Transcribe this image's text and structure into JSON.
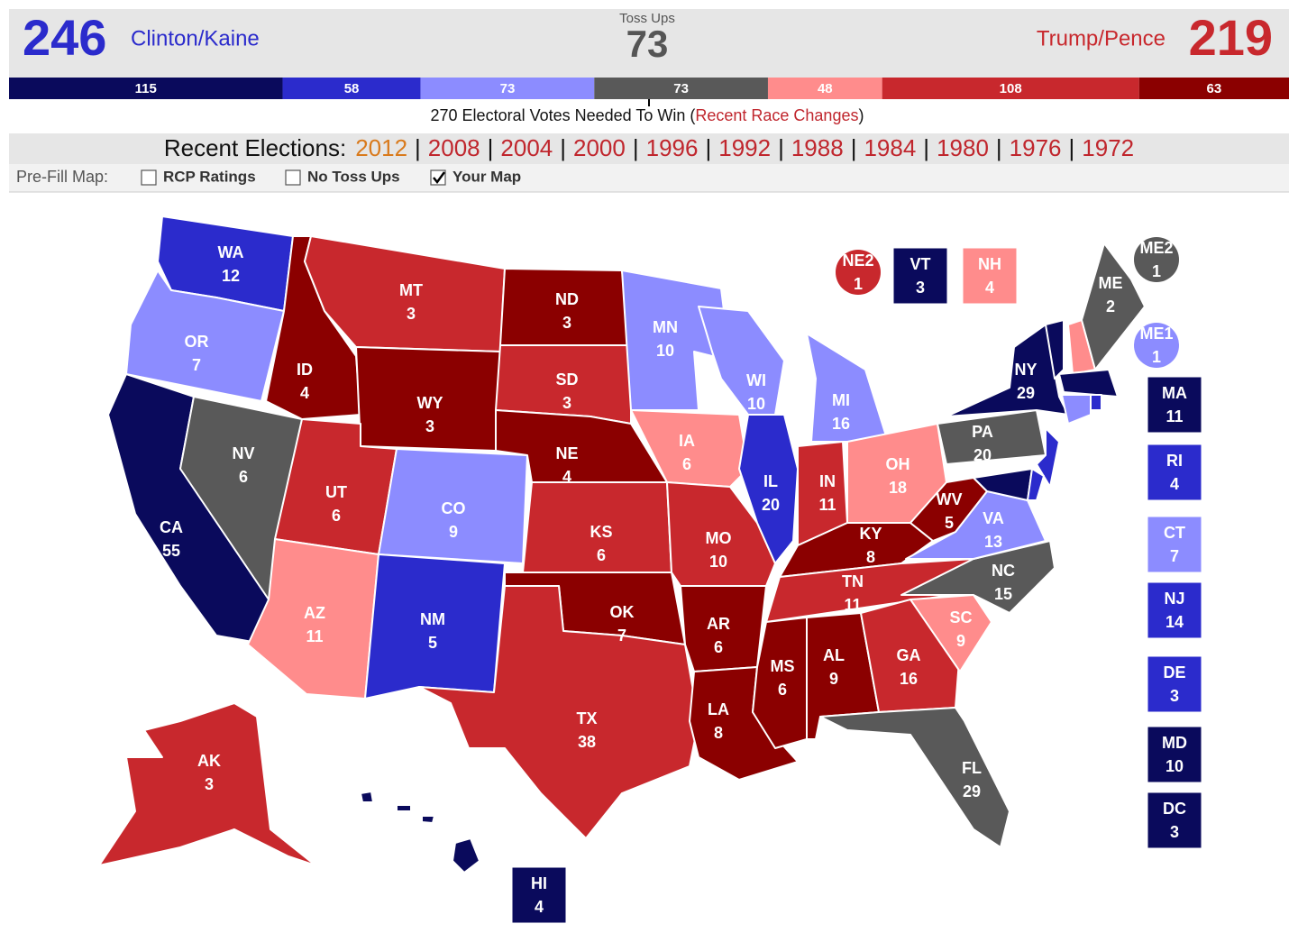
{
  "header": {
    "clinton_total": 246,
    "clinton_label": "Clinton/Kaine",
    "tossups_label": "Toss Ups",
    "tossups_total": 73,
    "trump_label": "Trump/Pence",
    "trump_total": 219
  },
  "bar": [
    {
      "value": 115,
      "color": "#0a0a5c"
    },
    {
      "value": 58,
      "color": "#2b2bcc"
    },
    {
      "value": 73,
      "color": "#8c8cff"
    },
    {
      "value": 73,
      "color": "#595959"
    },
    {
      "value": 48,
      "color": "#ff8c8c"
    },
    {
      "value": 108,
      "color": "#c8282d"
    },
    {
      "value": 63,
      "color": "#8b0000"
    }
  ],
  "needed": {
    "before": "270 Electoral Votes Needed To Win (",
    "link": "Recent Race Changes",
    "after": ")"
  },
  "elections": {
    "label": "Recent Elections:",
    "separator": "|",
    "active_index": 0,
    "years": [
      "2012",
      "2008",
      "2004",
      "2000",
      "1996",
      "1992",
      "1988",
      "1984",
      "1980",
      "1976",
      "1972"
    ]
  },
  "prefill": {
    "label": "Pre-Fill Map:",
    "options": [
      {
        "label": "RCP Ratings",
        "checked": false
      },
      {
        "label": "No Toss Ups",
        "checked": false
      },
      {
        "label": "Your Map",
        "checked": true
      }
    ]
  },
  "states": [
    {
      "abbr": "WA",
      "votes": 12,
      "color": "#2b2bcc"
    },
    {
      "abbr": "OR",
      "votes": 7,
      "color": "#8c8cff"
    },
    {
      "abbr": "CA",
      "votes": 55,
      "color": "#0a0a5c"
    },
    {
      "abbr": "NV",
      "votes": 6,
      "color": "#595959"
    },
    {
      "abbr": "ID",
      "votes": 4,
      "color": "#8b0000"
    },
    {
      "abbr": "MT",
      "votes": 3,
      "color": "#c8282d"
    },
    {
      "abbr": "WY",
      "votes": 3,
      "color": "#8b0000"
    },
    {
      "abbr": "UT",
      "votes": 6,
      "color": "#c8282d"
    },
    {
      "abbr": "CO",
      "votes": 9,
      "color": "#8c8cff"
    },
    {
      "abbr": "AZ",
      "votes": 11,
      "color": "#ff8c8c"
    },
    {
      "abbr": "NM",
      "votes": 5,
      "color": "#2b2bcc"
    },
    {
      "abbr": "ND",
      "votes": 3,
      "color": "#8b0000"
    },
    {
      "abbr": "SD",
      "votes": 3,
      "color": "#c8282d"
    },
    {
      "abbr": "NE",
      "votes": 4,
      "color": "#8b0000"
    },
    {
      "abbr": "KS",
      "votes": 6,
      "color": "#c8282d"
    },
    {
      "abbr": "OK",
      "votes": 7,
      "color": "#8b0000"
    },
    {
      "abbr": "TX",
      "votes": 38,
      "color": "#c8282d"
    },
    {
      "abbr": "MN",
      "votes": 10,
      "color": "#8c8cff"
    },
    {
      "abbr": "IA",
      "votes": 6,
      "color": "#ff8c8c"
    },
    {
      "abbr": "MO",
      "votes": 10,
      "color": "#c8282d"
    },
    {
      "abbr": "AR",
      "votes": 6,
      "color": "#8b0000"
    },
    {
      "abbr": "LA",
      "votes": 8,
      "color": "#8b0000"
    },
    {
      "abbr": "WI",
      "votes": 10,
      "color": "#8c8cff"
    },
    {
      "abbr": "IL",
      "votes": 20,
      "color": "#2b2bcc"
    },
    {
      "abbr": "MI",
      "votes": 16,
      "color": "#8c8cff"
    },
    {
      "abbr": "IN",
      "votes": 11,
      "color": "#c8282d"
    },
    {
      "abbr": "OH",
      "votes": 18,
      "color": "#ff8c8c"
    },
    {
      "abbr": "KY",
      "votes": 8,
      "color": "#8b0000"
    },
    {
      "abbr": "TN",
      "votes": 11,
      "color": "#c8282d"
    },
    {
      "abbr": "MS",
      "votes": 6,
      "color": "#8b0000"
    },
    {
      "abbr": "AL",
      "votes": 9,
      "color": "#8b0000"
    },
    {
      "abbr": "GA",
      "votes": 16,
      "color": "#c8282d"
    },
    {
      "abbr": "FL",
      "votes": 29,
      "color": "#595959"
    },
    {
      "abbr": "SC",
      "votes": 9,
      "color": "#ff8c8c"
    },
    {
      "abbr": "NC",
      "votes": 15,
      "color": "#595959"
    },
    {
      "abbr": "VA",
      "votes": 13,
      "color": "#8c8cff"
    },
    {
      "abbr": "WV",
      "votes": 5,
      "color": "#8b0000"
    },
    {
      "abbr": "PA",
      "votes": 20,
      "color": "#595959"
    },
    {
      "abbr": "NY",
      "votes": 29,
      "color": "#0a0a5c"
    },
    {
      "abbr": "NJ",
      "votes": 14,
      "color": "#2b2bcc"
    },
    {
      "abbr": "MD",
      "votes": 10,
      "color": "#0a0a5c"
    },
    {
      "abbr": "DE",
      "votes": 3,
      "color": "#2b2bcc"
    },
    {
      "abbr": "VT",
      "votes": 3,
      "color": "#0a0a5c"
    },
    {
      "abbr": "NH",
      "votes": 4,
      "color": "#ff8c8c"
    },
    {
      "abbr": "ME",
      "votes": 2,
      "color": "#595959"
    },
    {
      "abbr": "MA",
      "votes": 11,
      "color": "#0a0a5c"
    },
    {
      "abbr": "CT",
      "votes": 7,
      "color": "#8c8cff"
    },
    {
      "abbr": "RI",
      "votes": 4,
      "color": "#2b2bcc"
    },
    {
      "abbr": "AK",
      "votes": 3,
      "color": "#c8282d"
    },
    {
      "abbr": "HI",
      "votes": 4,
      "color": "#0a0a5c"
    },
    {
      "abbr": "DC",
      "votes": 3,
      "color": "#0a0a5c"
    },
    {
      "abbr": "NE2",
      "votes": 1,
      "color": "#c8282d"
    },
    {
      "abbr": "ME1",
      "votes": 1,
      "color": "#8c8cff"
    },
    {
      "abbr": "ME2",
      "votes": 1,
      "color": "#595959"
    }
  ]
}
